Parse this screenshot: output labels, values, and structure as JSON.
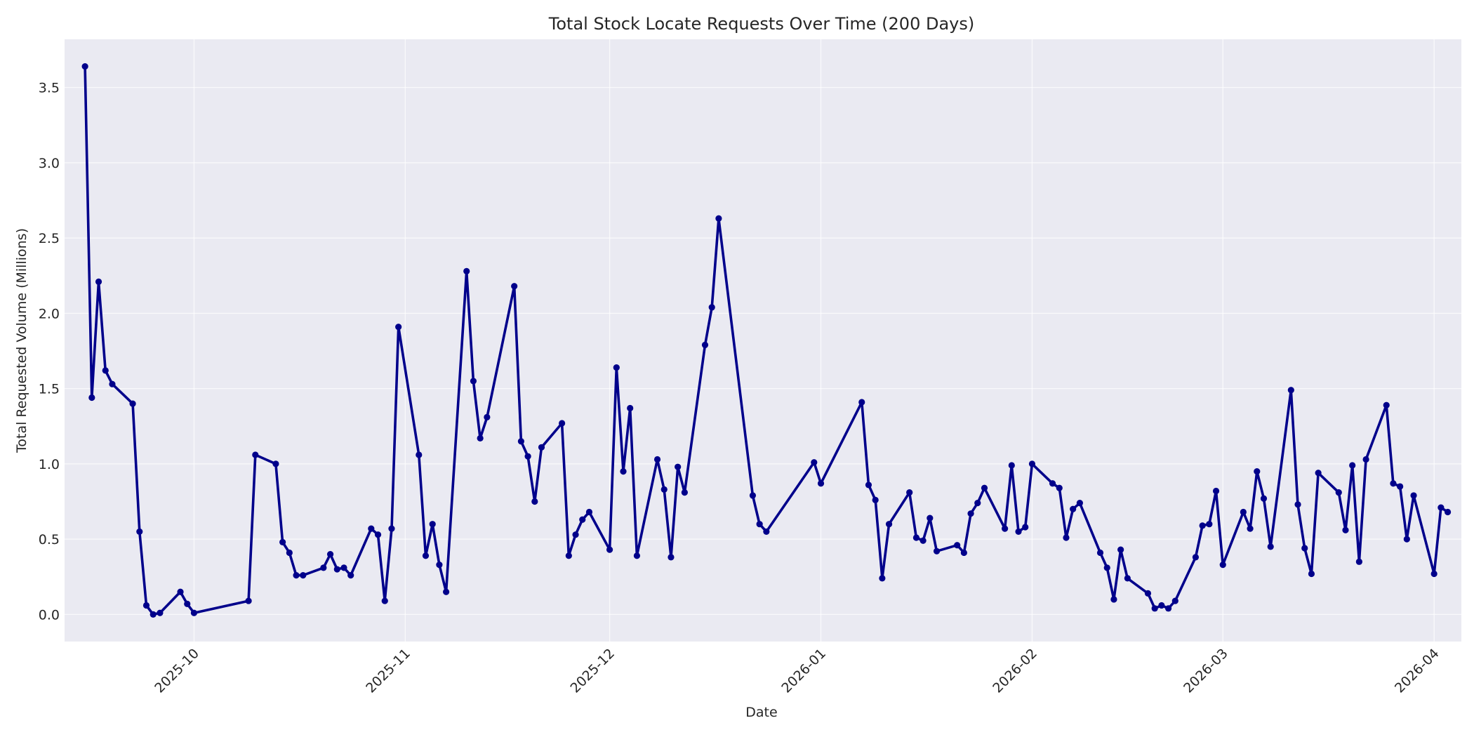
{
  "chart_data": {
    "type": "line",
    "title": "Total Stock Locate Requests Over Time (200 Days)",
    "xlabel": "Date",
    "ylabel": "Total Requested Volume (Millions)",
    "xlim": [
      "2025-09-12",
      "2026-04-05"
    ],
    "ylim": [
      -0.18,
      3.82
    ],
    "x_ticks": [
      "2025-10",
      "2025-11",
      "2025-12",
      "2026-01",
      "2026-02",
      "2026-03",
      "2026-04"
    ],
    "y_ticks": [
      "0.0",
      "0.5",
      "1.0",
      "1.5",
      "2.0",
      "2.5",
      "3.0",
      "3.5"
    ],
    "grid": true,
    "colors": {
      "series": "#00008b",
      "plot_background": "#eaeaf2",
      "grid": "#ffffff"
    },
    "series": [
      {
        "x": [
          "2025-09-15",
          "2025-09-16",
          "2025-09-17",
          "2025-09-18",
          "2025-09-19",
          "2025-09-22",
          "2025-09-23",
          "2025-09-24",
          "2025-09-25",
          "2025-09-26",
          "2025-09-29",
          "2025-09-30",
          "2025-10-01",
          "2025-10-09",
          "2025-10-10",
          "2025-10-13",
          "2025-10-14",
          "2025-10-15",
          "2025-10-16",
          "2025-10-17",
          "2025-10-20",
          "2025-10-21",
          "2025-10-22",
          "2025-10-23",
          "2025-10-24",
          "2025-10-27",
          "2025-10-28",
          "2025-10-29",
          "2025-10-30",
          "2025-10-31",
          "2025-11-03",
          "2025-11-04",
          "2025-11-05",
          "2025-11-06",
          "2025-11-07",
          "2025-11-10",
          "2025-11-11",
          "2025-11-12",
          "2025-11-13",
          "2025-11-17",
          "2025-11-18",
          "2025-11-19",
          "2025-11-20",
          "2025-11-21",
          "2025-11-24",
          "2025-11-25",
          "2025-11-26",
          "2025-11-27",
          "2025-11-28",
          "2025-12-01",
          "2025-12-02",
          "2025-12-03",
          "2025-12-04",
          "2025-12-05",
          "2025-12-08",
          "2025-12-09",
          "2025-12-10",
          "2025-12-11",
          "2025-12-12",
          "2025-12-15",
          "2025-12-16",
          "2025-12-17",
          "2025-12-22",
          "2025-12-23",
          "2025-12-24",
          "2025-12-31",
          "2026-01-01",
          "2026-01-07",
          "2026-01-08",
          "2026-01-09",
          "2026-01-10",
          "2026-01-11",
          "2026-01-14",
          "2026-01-15",
          "2026-01-16",
          "2026-01-17",
          "2026-01-18",
          "2026-01-21",
          "2026-01-22",
          "2026-01-23",
          "2026-01-24",
          "2026-01-25",
          "2026-01-28",
          "2026-01-29",
          "2026-01-30",
          "2026-01-31",
          "2026-02-01",
          "2026-02-04",
          "2026-02-05",
          "2026-02-06",
          "2026-02-07",
          "2026-02-08",
          "2026-02-11",
          "2026-02-12",
          "2026-02-13",
          "2026-02-14",
          "2026-02-15",
          "2026-02-18",
          "2026-02-19",
          "2026-02-20",
          "2026-02-21",
          "2026-02-22",
          "2026-02-25",
          "2026-02-26",
          "2026-02-27",
          "2026-02-28",
          "2026-03-01",
          "2026-03-04",
          "2026-03-05",
          "2026-03-06",
          "2026-03-07",
          "2026-03-08",
          "2026-03-11",
          "2026-03-12",
          "2026-03-13",
          "2026-03-14",
          "2026-03-15",
          "2026-03-18",
          "2026-03-19",
          "2026-03-20",
          "2026-03-21",
          "2026-03-22",
          "2026-03-25",
          "2026-03-26",
          "2026-03-27",
          "2026-03-28",
          "2026-03-29",
          "2026-04-01",
          "2026-04-02",
          "2026-04-03"
        ],
        "values": [
          3.64,
          1.44,
          2.21,
          1.62,
          1.53,
          1.4,
          0.55,
          0.06,
          0.0,
          0.01,
          0.15,
          0.07,
          0.01,
          0.09,
          1.06,
          1.0,
          0.48,
          0.41,
          0.26,
          0.26,
          0.31,
          0.4,
          0.3,
          0.31,
          0.26,
          0.57,
          0.53,
          0.09,
          0.57,
          1.91,
          1.06,
          0.39,
          0.6,
          0.33,
          0.15,
          2.28,
          1.55,
          1.17,
          1.31,
          2.18,
          1.15,
          1.05,
          0.75,
          1.11,
          1.27,
          0.39,
          0.53,
          0.63,
          0.68,
          0.43,
          1.64,
          0.95,
          1.37,
          0.39,
          1.03,
          0.83,
          0.38,
          0.98,
          0.81,
          1.79,
          2.04,
          2.63,
          0.79,
          0.6,
          0.55,
          1.01,
          0.87,
          1.41,
          0.86,
          0.76,
          0.24,
          0.6,
          0.81,
          0.51,
          0.49,
          0.64,
          0.42,
          0.46,
          0.41,
          0.67,
          0.74,
          0.84,
          0.57,
          0.99,
          0.55,
          0.58,
          1.0,
          0.87,
          0.84,
          0.51,
          0.7,
          0.74,
          0.41,
          0.31,
          0.1,
          0.43,
          0.24,
          0.14,
          0.04,
          0.06,
          0.04,
          0.09,
          0.38,
          0.59,
          0.6,
          0.82,
          0.33,
          0.68,
          0.57,
          0.95,
          0.77,
          0.45,
          1.49,
          0.73,
          0.44,
          0.27,
          0.94,
          0.81,
          0.56,
          0.99,
          0.35,
          1.03,
          1.39,
          0.87,
          0.85,
          0.5,
          0.79,
          0.27,
          0.71,
          0.68
        ]
      }
    ]
  }
}
